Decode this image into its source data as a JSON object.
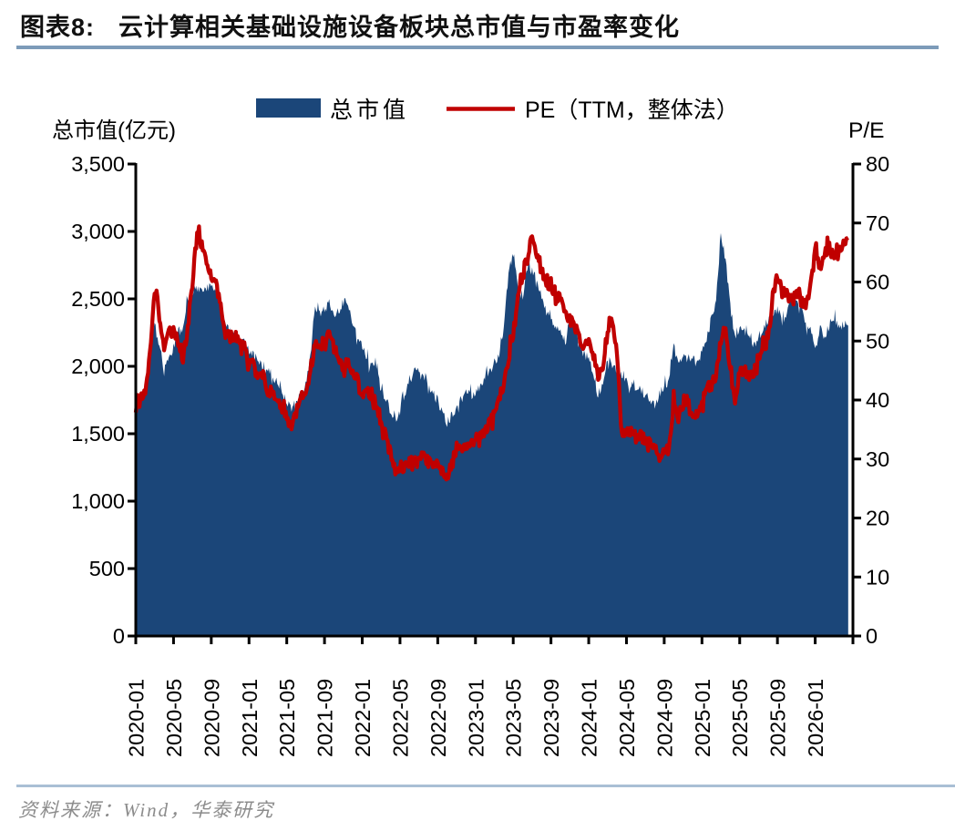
{
  "header": {
    "title_prefix": "图表8:",
    "title": "云计算相关基础设施设备板块总市值与市盈率变化"
  },
  "legend": {
    "items": [
      {
        "label": "总市值",
        "type": "area",
        "color": "#1B4679"
      },
      {
        "label": "PE（TTM，整体法）",
        "type": "line",
        "color": "#C00000"
      }
    ]
  },
  "footer": {
    "source": "资料来源：Wind，华泰研究"
  },
  "chart_data": {
    "type": "area+line",
    "title": "云计算相关基础设施设备板块总市值与市盈率变化",
    "grid": false,
    "legend_position": "top-center",
    "left_axis": {
      "title": "总市值(亿元)",
      "min": 0,
      "max": 3500,
      "step": 500,
      "tick_labels": [
        "3,500",
        "3,000",
        "2,500",
        "2,000",
        "1,500",
        "1,000",
        "500",
        "0"
      ]
    },
    "right_axis": {
      "title": "P/E",
      "min": 0,
      "max": 80,
      "step": 10,
      "tick_labels": [
        "80",
        "70",
        "60",
        "50",
        "40",
        "30",
        "20",
        "10",
        "0"
      ]
    },
    "x_axis": {
      "start": "2020-01",
      "end": "2026-04",
      "step_months": 0.5,
      "tick_labels": [
        "2020-01",
        "2020-05",
        "2020-09",
        "2021-01",
        "2021-05",
        "2021-09",
        "2022-01",
        "2022-05",
        "2022-09",
        "2023-01",
        "2023-05",
        "2023-09",
        "2024-01",
        "2024-05",
        "2024-09",
        "2025-01",
        "2025-05",
        "2025-09",
        "2026-01"
      ]
    },
    "series": [
      {
        "name": "总市值",
        "axis": "left",
        "unit": "亿元",
        "color": "#1B4679",
        "style": "area",
        "values": [
          1676,
          1750,
          1830,
          2050,
          2318,
          2150,
          1960,
          2050,
          2130,
          2260,
          2250,
          2500,
          2550,
          2610,
          2570,
          2590,
          2590,
          2540,
          2400,
          2300,
          2250,
          2215,
          2215,
          2180,
          2130,
          2080,
          2030,
          1990,
          1965,
          1940,
          1870,
          1800,
          1740,
          1695,
          1720,
          1800,
          1880,
          2080,
          2440,
          2400,
          2420,
          2465,
          2372,
          2420,
          2484,
          2440,
          2305,
          2216,
          2128,
          2061,
          1993,
          2034,
          1858,
          1750,
          1676,
          1608,
          1680,
          1791,
          1880,
          1946,
          1993,
          1950,
          1858,
          1800,
          1740,
          1650,
          1574,
          1640,
          1696,
          1750,
          1791,
          1800,
          1811,
          1850,
          1899,
          1960,
          2027,
          2100,
          2300,
          2700,
          2840,
          2600,
          2500,
          2750,
          2700,
          2650,
          2500,
          2400,
          2350,
          2300,
          2284,
          2171,
          2351,
          2300,
          2149,
          2100,
          2050,
          1950,
          1780,
          1900,
          2060,
          2020,
          1980,
          1940,
          1900,
          1870,
          1850,
          1820,
          1780,
          1760,
          1740,
          1780,
          1850,
          1900,
          2150,
          2000,
          2100,
          2060,
          2050,
          2020,
          2100,
          2200,
          2350,
          2500,
          3000,
          2780,
          2450,
          2216,
          2304,
          2263,
          2196,
          2149,
          2216,
          2284,
          2351,
          2398,
          2419,
          2338,
          2398,
          2464,
          2484,
          2419,
          2304,
          2263,
          2171,
          2284,
          2216,
          2304,
          2372,
          2300,
          2310,
          2300
        ]
      },
      {
        "name": "PE（TTM，整体法）",
        "axis": "right",
        "color": "#C00000",
        "style": "line",
        "values": [
          38.8,
          40.5,
          41.9,
          48.0,
          58.8,
          53.7,
          48.6,
          52.0,
          52.5,
          49.5,
          47.3,
          52.0,
          60.0,
          68.7,
          66.1,
          63.5,
          60.4,
          59.9,
          55.8,
          51.7,
          50.7,
          51.1,
          49.1,
          49.1,
          46.5,
          46.0,
          44.0,
          44.0,
          41.4,
          41.4,
          40.3,
          38.5,
          37.2,
          35.2,
          37.8,
          40.0,
          41.9,
          45.6,
          49.1,
          48.7,
          50.2,
          51.2,
          48.7,
          47.0,
          45.6,
          46.5,
          44.0,
          43.4,
          40.3,
          41.4,
          41.0,
          39.4,
          36.3,
          34.2,
          31.5,
          27.5,
          29.0,
          28.5,
          29.5,
          30.0,
          30.3,
          31.0,
          29.5,
          28.6,
          29.5,
          28.0,
          27.2,
          29.0,
          32.1,
          31.4,
          32.6,
          33.0,
          33.5,
          34.0,
          34.7,
          36.0,
          37.8,
          40.0,
          42.5,
          47.1,
          51.2,
          56.8,
          61.0,
          64.0,
          68.1,
          64.5,
          62.5,
          59.4,
          59.9,
          56.8,
          57.9,
          54.8,
          53.7,
          52.7,
          50.2,
          48.7,
          50.7,
          47.6,
          43.4,
          46.0,
          51.7,
          53.7,
          47.6,
          34.2,
          35.2,
          34.5,
          33.7,
          34.0,
          33.2,
          32.5,
          31.6,
          30.6,
          31.0,
          31.6,
          39.8,
          37.2,
          39.4,
          39.8,
          36.3,
          37.8,
          38.8,
          42.5,
          42.5,
          44.0,
          50.2,
          52.2,
          45.0,
          39.8,
          44.5,
          45.6,
          43.4,
          44.5,
          47.6,
          49.1,
          50.2,
          57.3,
          61.5,
          57.9,
          58.8,
          55.8,
          58.4,
          56.8,
          55.8,
          58.8,
          65.6,
          62.5,
          64.5,
          66.1,
          63.5,
          65.0,
          66.0,
          67.5
        ]
      }
    ]
  }
}
